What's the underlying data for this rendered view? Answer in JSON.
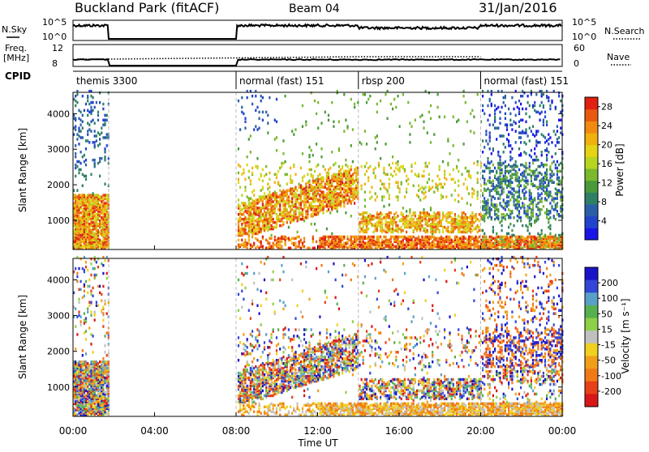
{
  "header": {
    "station": "Buckland Park (fitACF)",
    "beam": "Beam 04",
    "date": "31/Jan/2016"
  },
  "side_labels": {
    "nsky": "N.Sky",
    "freq_line1": "Freq.",
    "freq_line2": "[MHz]",
    "cpid": "CPID",
    "nsearch": "N.Search",
    "nave": "Nave"
  },
  "noise_axis": {
    "top": "10^5",
    "bottom": "10^0"
  },
  "freq_axis": {
    "ticks": [
      "12",
      "8"
    ],
    "right_ticks": [
      "60",
      "0"
    ]
  },
  "cpid_segments": [
    {
      "label": "themis 3300",
      "start_hour": 0.0
    },
    {
      "label": "normal (fast) 151",
      "start_hour": 8.0
    },
    {
      "label": "rbsp 200",
      "start_hour": 14.0
    },
    {
      "label": "normal (fast) 151",
      "start_hour": 20.0
    }
  ],
  "data_gaps": [
    {
      "start_hour": 1.75,
      "end_hour": 8.0
    }
  ],
  "chart_data": [
    {
      "type": "heatmap",
      "name": "power",
      "ylabel": "Slant Range [km]",
      "xlim_hours": [
        0,
        24
      ],
      "ylim": [
        180,
        4600
      ],
      "y_ticks": [
        "1000",
        "2000",
        "3000",
        "4000"
      ],
      "colorbar": {
        "label": "Power [dB]",
        "ticks": [
          "4",
          "8",
          "12",
          "16",
          "20",
          "24",
          "28"
        ],
        "range": [
          0,
          30
        ],
        "colors": [
          "#1a14e6",
          "#2244cc",
          "#2a5fa8",
          "#2e7f66",
          "#4a9a3a",
          "#7ab82e",
          "#b8d420",
          "#e4d414",
          "#f0b010",
          "#f08a10",
          "#e85a10",
          "#e02010"
        ]
      }
    },
    {
      "type": "heatmap",
      "name": "velocity",
      "ylabel": "Slant Range [km]",
      "xlim_hours": [
        0,
        24
      ],
      "ylim": [
        180,
        4600
      ],
      "y_ticks": [
        "1000",
        "2000",
        "3000",
        "4000"
      ],
      "colorbar": {
        "label": "Velocity [m s⁻¹]",
        "ticks": [
          "200",
          "100",
          "50",
          "15",
          "-15",
          "-50",
          "-100",
          "-200"
        ],
        "colors": [
          "#1a14c8",
          "#3346d8",
          "#58a0c8",
          "#56b050",
          "#8ed048",
          "#c0c0c0",
          "#f0d020",
          "#f0a018",
          "#f07a18",
          "#e84018",
          "#d81818"
        ]
      }
    }
  ],
  "x_axis": {
    "label": "Time UT",
    "ticks": [
      "00:00",
      "04:00",
      "08:00",
      "12:00",
      "16:00",
      "20:00",
      "00:00"
    ]
  }
}
